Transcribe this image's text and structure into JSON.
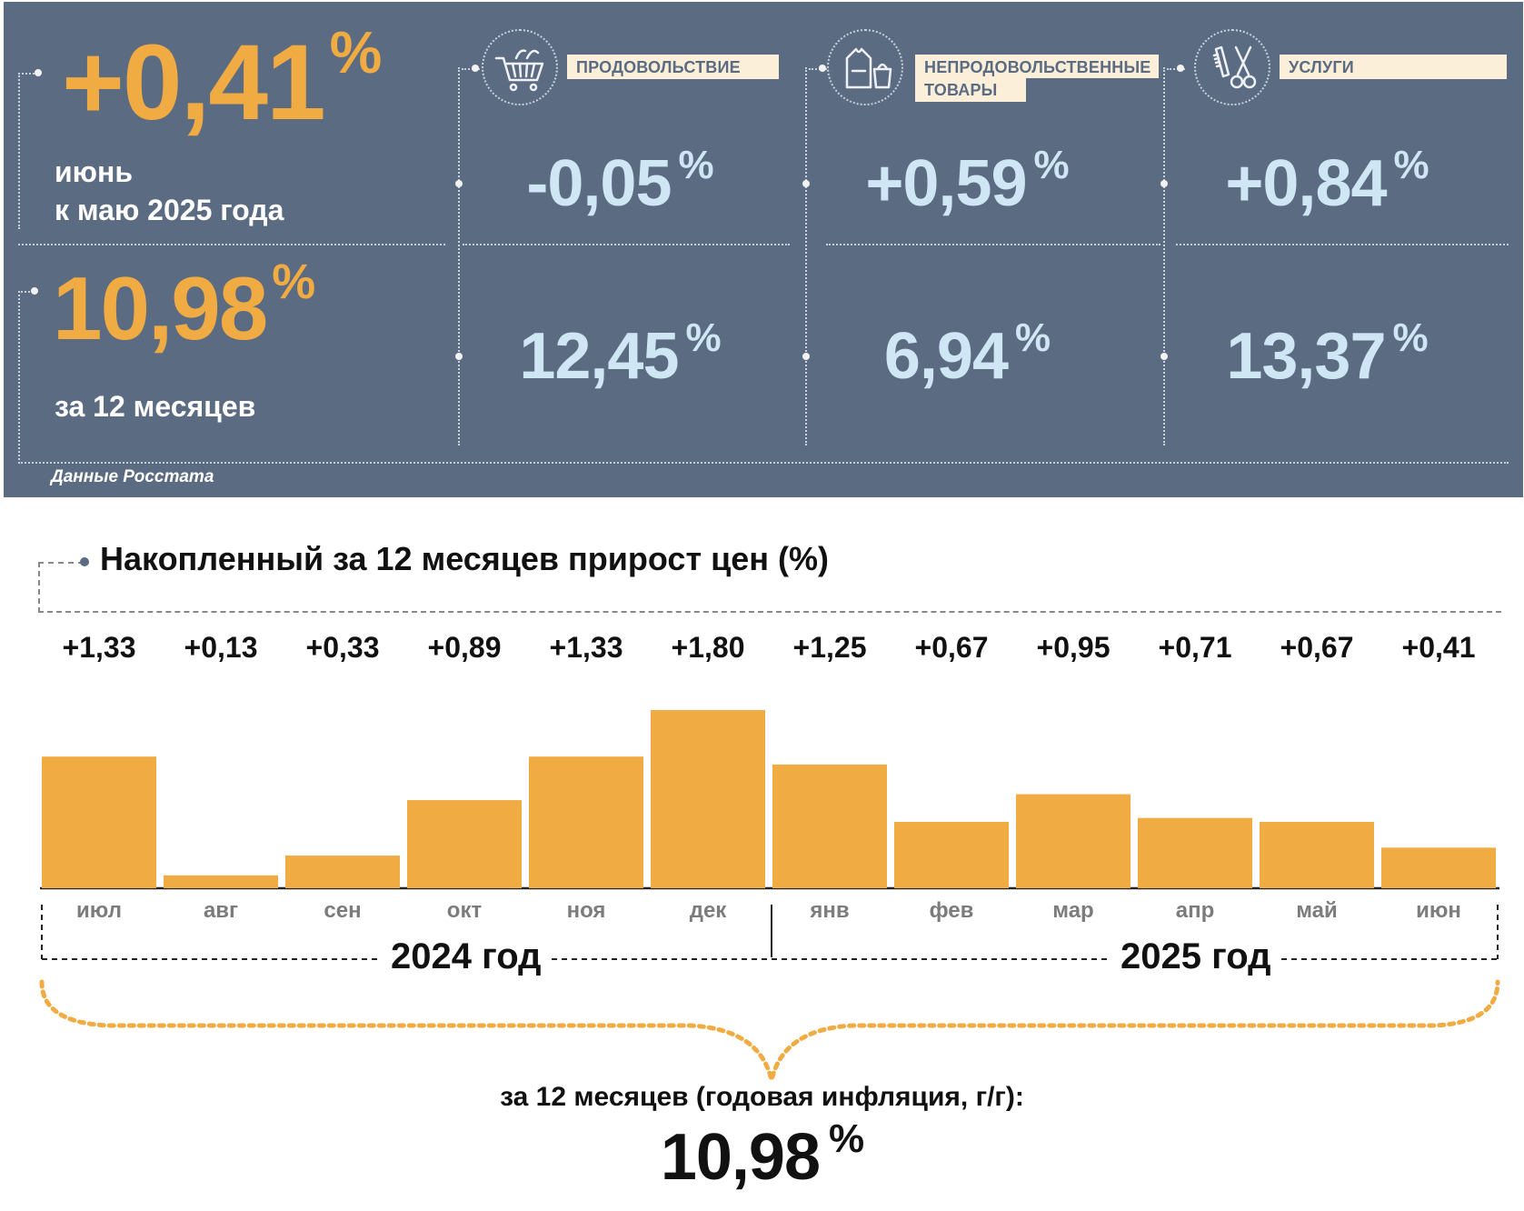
{
  "summary": {
    "monthly": {
      "value": "+0,41",
      "unit": "%",
      "label_line1": "июнь",
      "label_line2": "к маю 2025 года"
    },
    "annual": {
      "value": "10,98",
      "unit": "%",
      "label": "за 12 месяцев"
    },
    "categories": [
      {
        "name": "ПРОДОВОЛЬСТВИЕ",
        "icon": "shopping-cart-icon",
        "monthly": "-0,05",
        "annual": "12,45",
        "unit": "%"
      },
      {
        "name_line1": "НЕПРОДОВОЛЬСТВЕННЫЕ",
        "name_line2": "ТОВАРЫ",
        "icon": "clothing-bag-icon",
        "monthly": "+0,59",
        "annual": "6,94",
        "unit": "%"
      },
      {
        "name": "УСЛУГИ",
        "icon": "comb-scissors-icon",
        "monthly": "+0,84",
        "annual": "13,37",
        "unit": "%"
      }
    ],
    "source": "Данные Росстата"
  },
  "colors": {
    "panel_bg": "#5b6b82",
    "orange": "#f0ab43",
    "light_blue": "#cfe6f5",
    "label_bg": "#fbefd9"
  },
  "chart_data": {
    "type": "bar",
    "title": "Накопленный за 12 месяцев прирост цен (%)",
    "categories": [
      "июл",
      "авг",
      "сен",
      "окт",
      "ноя",
      "дек",
      "янв",
      "фев",
      "мар",
      "апр",
      "май",
      "июн"
    ],
    "values": [
      1.33,
      0.13,
      0.33,
      0.89,
      1.33,
      1.8,
      1.25,
      0.67,
      0.95,
      0.71,
      0.67,
      0.41
    ],
    "value_labels": [
      "+1,33",
      "+0,13",
      "+0,33",
      "+0,89",
      "+1,33",
      "+1,80",
      "+1,25",
      "+0,67",
      "+0,95",
      "+0,71",
      "+0,67",
      "+0,41"
    ],
    "year_groups": [
      {
        "label": "2024 год",
        "months": [
          "июл",
          "авг",
          "сен",
          "окт",
          "ноя",
          "дек"
        ]
      },
      {
        "label": "2025 год",
        "months": [
          "янв",
          "фев",
          "мар",
          "апр",
          "май",
          "июн"
        ]
      }
    ],
    "bar_color": "#f0ab43",
    "ylim": [
      0,
      1.8
    ],
    "grid": false,
    "total_caption": "за 12 месяцев (годовая инфляция, г/г):",
    "total_value": "10,98",
    "total_unit": "%"
  }
}
